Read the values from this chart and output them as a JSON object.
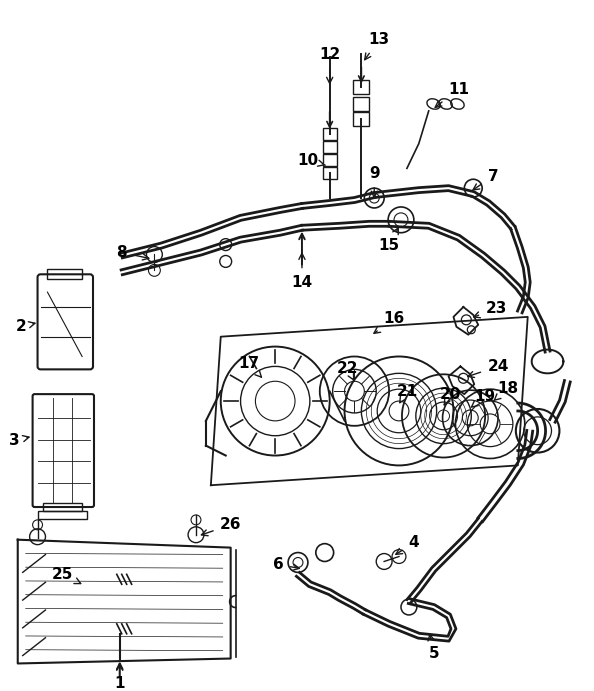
{
  "background": "#ffffff",
  "line_color": "#1a1a1a",
  "label_color": "#000000",
  "fig_width": 5.94,
  "fig_height": 6.91,
  "dpi": 100
}
